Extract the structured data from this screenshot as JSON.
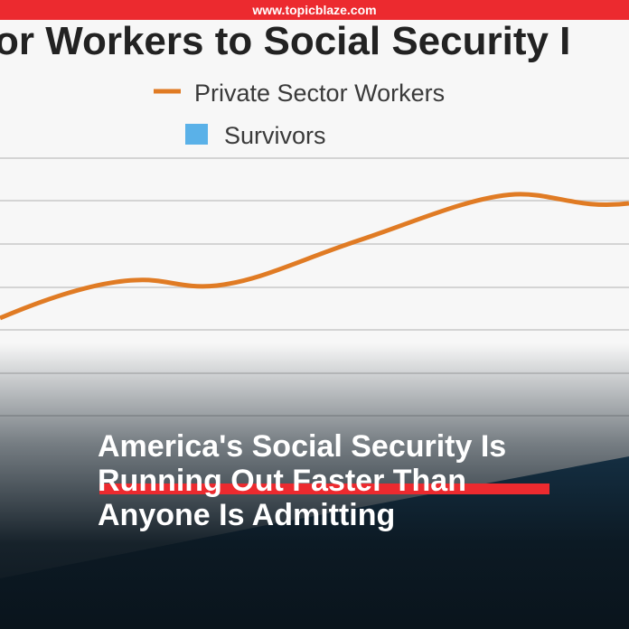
{
  "header": {
    "site": "www.topicblaze.com"
  },
  "background_chart": {
    "title": "or Workers to Social Security I",
    "legend": [
      "Private Sector Workers",
      "Survivors"
    ]
  },
  "headline": {
    "lines": [
      "America's Social Security Is",
      "Running Out Faster Than",
      "Anyone Is Admitting"
    ]
  }
}
